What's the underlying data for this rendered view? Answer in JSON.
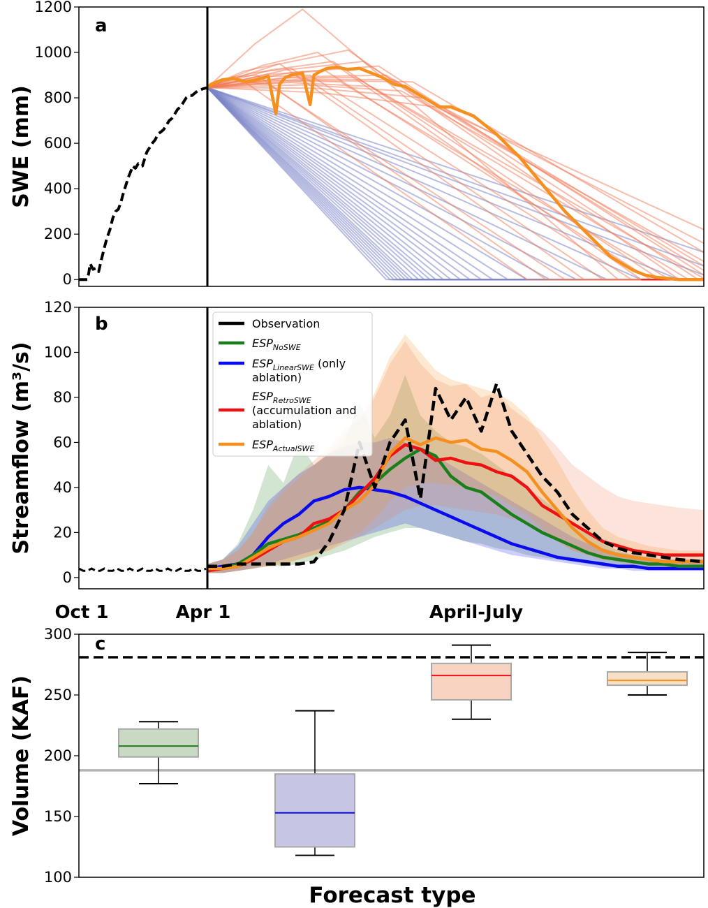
{
  "figure": {
    "bottom_labels": {
      "oct1": "Oct 1",
      "apr1": "Apr 1",
      "apr_jul": "April-July"
    },
    "colors": {
      "observation": "#000000",
      "nosweet": "#1a7f1a",
      "linear": "#0a0aee",
      "retro": "#ee1111",
      "actual": "#f5901e",
      "ens_orange": "#f27a55",
      "ens_blue": "#7b85c8",
      "ref_gray": "#b4b4b4"
    }
  },
  "chart_data": [
    {
      "panel": "a",
      "type": "line",
      "ylabel": "SWE (mm)",
      "ylim": [
        -30,
        1200
      ],
      "yticks": [
        0,
        200,
        400,
        600,
        800,
        1000,
        1200
      ],
      "x_domain": [
        "Oct 1",
        "Jul 31"
      ],
      "observation_before_apr1": {
        "x": [
          0,
          6,
          9,
          10,
          12,
          14,
          16,
          20,
          24,
          28,
          32,
          36,
          40,
          44,
          48,
          52,
          56,
          60,
          62,
          66,
          70,
          74,
          76,
          80,
          84,
          88,
          90,
          92,
          96,
          100,
          104,
          108,
          112,
          116,
          120,
          124,
          128,
          132,
          136,
          140,
          144,
          148,
          152,
          156,
          160,
          164,
          168,
          172,
          176,
          182
        ],
        "y": [
          0,
          0,
          0,
          0,
          0,
          30,
          70,
          45,
          50,
          35,
          90,
          140,
          185,
          220,
          270,
          300,
          310,
          345,
          370,
          410,
          450,
          480,
          500,
          490,
          510,
          500,
          500,
          520,
          560,
          580,
          600,
          615,
          640,
          650,
          660,
          680,
          700,
          710,
          730,
          750,
          760,
          780,
          800,
          810,
          810,
          820,
          830,
          835,
          840,
          845
        ]
      },
      "actual_swe_forecast": {
        "x": [
          182,
          184,
          190,
          196,
          202,
          208,
          214,
          218,
          220,
          223,
          226,
          232,
          236,
          238,
          241,
          245,
          250,
          256,
          262,
          268,
          274,
          280,
          286,
          292,
          298,
          304,
          310,
          316,
          322,
          328,
          334,
          340,
          346,
          352,
          358,
          364,
          370,
          376,
          382,
          388,
          394,
          400,
          406,
          412,
          418,
          424,
          430,
          436,
          443
        ],
        "y": [
          845,
          860,
          880,
          885,
          870,
          880,
          895,
          730,
          860,
          890,
          900,
          910,
          770,
          900,
          915,
          930,
          935,
          925,
          930,
          910,
          890,
          860,
          850,
          820,
          790,
          760,
          760,
          740,
          720,
          680,
          640,
          590,
          540,
          480,
          420,
          360,
          300,
          250,
          200,
          150,
          100,
          70,
          40,
          20,
          10,
          5,
          0,
          0,
          0
        ]
      },
      "ensemble_accumulation_ablation": {
        "start_x": 182,
        "start_y": 845,
        "peak_x": [
          200,
          208,
          214,
          220,
          226,
          232,
          236,
          240,
          244,
          248,
          252,
          256,
          260,
          264,
          268,
          272,
          276,
          280,
          284,
          290,
          296,
          302
        ],
        "peak_y": [
          880,
          900,
          860,
          950,
          930,
          1190,
          900,
          1000,
          920,
          960,
          870,
          1010,
          890,
          960,
          850,
          940,
          900,
          880,
          830,
          870,
          800,
          760
        ],
        "melt_out_x": [
          350,
          360,
          370,
          380,
          390,
          398,
          405,
          410,
          415,
          420,
          425,
          430,
          435,
          440,
          443,
          443,
          443,
          443,
          443,
          443,
          443,
          443
        ],
        "end_y": [
          0,
          0,
          0,
          0,
          0,
          0,
          0,
          0,
          0,
          0,
          0,
          0,
          0,
          0,
          5,
          20,
          40,
          60,
          80,
          120,
          160,
          220
        ]
      },
      "ensemble_linear_ablation": {
        "start_x": 182,
        "start_y": 845,
        "melt_out_x": [
          276,
          278,
          280,
          282,
          284,
          286,
          288,
          290,
          293,
          296,
          299,
          302,
          306,
          310,
          315,
          320,
          326,
          332,
          340,
          350,
          362,
          376,
          392,
          410,
          430,
          443,
          443,
          443
        ],
        "end_y": [
          0,
          0,
          0,
          0,
          0,
          0,
          0,
          0,
          0,
          0,
          0,
          0,
          0,
          0,
          0,
          0,
          0,
          0,
          0,
          0,
          0,
          0,
          0,
          0,
          0,
          20,
          60,
          120
        ]
      }
    },
    {
      "panel": "b",
      "type": "line",
      "ylabel": "Streamflow (m³/s)",
      "ylim": [
        -5,
        120
      ],
      "yticks": [
        0,
        20,
        40,
        60,
        80,
        100,
        120
      ],
      "legend": {
        "position": "top-left",
        "entries": [
          {
            "main": "Observation",
            "sub": "",
            "tail": "",
            "line2": "",
            "line3": "",
            "series": "observation"
          },
          {
            "main": "ESP",
            "sub": "NoSWE",
            "tail": "",
            "line2": "",
            "line3": "",
            "series": "nosweet"
          },
          {
            "main": "ESP",
            "sub": "LinearSWE",
            "tail": " (only",
            "line2": "ablation)",
            "line3": "",
            "series": "linear"
          },
          {
            "main": "ESP",
            "sub": "RetroSWE",
            "tail": "",
            "line2": "(accumulation and",
            "line3": "ablation)",
            "series": "retro"
          },
          {
            "main": "ESP",
            "sub": "ActualSWE",
            "tail": "",
            "line2": "",
            "line3": "",
            "series": "actual"
          }
        ]
      },
      "x": [
        182,
        190,
        198,
        206,
        214,
        222,
        230,
        238,
        246,
        254,
        262,
        270,
        278,
        286,
        294,
        302,
        310,
        318,
        326,
        334,
        342,
        350,
        358,
        366,
        374,
        382,
        390,
        398,
        406,
        414,
        422,
        430,
        443
      ],
      "series": [
        {
          "key": "observation",
          "dashed": true,
          "values": [
            5,
            5,
            6,
            6,
            6,
            6,
            6,
            7,
            16,
            30,
            60,
            40,
            60,
            70,
            35,
            84,
            70,
            80,
            65,
            86,
            65,
            55,
            45,
            38,
            28,
            22,
            16,
            13,
            11,
            10,
            9,
            8,
            7
          ]
        },
        {
          "key": "nosweet",
          "values": [
            4,
            4,
            6,
            10,
            15,
            17,
            19,
            22,
            25,
            30,
            38,
            42,
            48,
            53,
            57,
            54,
            45,
            40,
            38,
            33,
            28,
            24,
            20,
            17,
            14,
            11,
            9,
            8,
            7,
            6,
            6,
            5,
            5
          ]
        },
        {
          "key": "linear",
          "values": [
            4,
            5,
            6,
            10,
            18,
            24,
            28,
            34,
            36,
            39,
            40,
            39,
            38,
            36,
            33,
            30,
            27,
            24,
            21,
            18,
            15,
            13,
            11,
            9,
            8,
            7,
            6,
            5,
            5,
            4,
            4,
            4,
            4
          ]
        },
        {
          "key": "retro",
          "values": [
            3,
            4,
            5,
            8,
            12,
            16,
            18,
            24,
            26,
            30,
            37,
            44,
            54,
            59,
            57,
            52,
            53,
            51,
            50,
            47,
            45,
            40,
            32,
            28,
            24,
            20,
            16,
            14,
            12,
            11,
            10,
            10,
            10
          ]
        },
        {
          "key": "actual",
          "values": [
            4,
            4,
            5,
            9,
            13,
            16,
            18,
            21,
            24,
            30,
            34,
            41,
            55,
            62,
            59,
            62,
            60,
            61,
            57,
            56,
            52,
            47,
            38,
            30,
            22,
            16,
            12,
            10,
            9,
            8,
            7,
            7,
            7
          ]
        }
      ],
      "bands": [
        {
          "key": "nosweet",
          "lower": [
            2,
            2,
            3,
            4,
            5,
            5,
            6,
            8,
            10,
            12,
            15,
            18,
            20,
            22,
            22,
            20,
            18,
            16,
            15,
            13,
            12,
            10,
            9,
            8,
            7,
            6,
            5,
            4,
            4,
            4,
            4,
            4,
            4
          ],
          "upper": [
            6,
            8,
            15,
            30,
            50,
            42,
            60,
            50,
            55,
            60,
            78,
            62,
            72,
            90,
            72,
            65,
            60,
            58,
            55,
            50,
            45,
            40,
            35,
            30,
            25,
            20,
            15,
            12,
            10,
            9,
            8,
            8,
            8
          ]
        },
        {
          "key": "linear",
          "lower": [
            2,
            2,
            3,
            4,
            6,
            8,
            10,
            12,
            14,
            16,
            18,
            20,
            22,
            24,
            22,
            20,
            18,
            16,
            14,
            12,
            10,
            9,
            8,
            7,
            6,
            5,
            4,
            4,
            3,
            3,
            3,
            3,
            3
          ],
          "upper": [
            6,
            8,
            14,
            24,
            34,
            40,
            46,
            50,
            55,
            58,
            60,
            60,
            62,
            60,
            58,
            54,
            50,
            46,
            42,
            38,
            34,
            30,
            26,
            22,
            18,
            15,
            13,
            11,
            10,
            9,
            8,
            8,
            8
          ]
        },
        {
          "key": "retro",
          "lower": [
            2,
            2,
            3,
            4,
            5,
            6,
            8,
            10,
            12,
            15,
            18,
            22,
            26,
            30,
            32,
            32,
            31,
            30,
            29,
            28,
            26,
            24,
            20,
            16,
            12,
            10,
            8,
            7,
            6,
            6,
            5,
            5,
            5
          ],
          "upper": [
            6,
            8,
            12,
            20,
            32,
            40,
            46,
            52,
            58,
            66,
            70,
            80,
            95,
            105,
            95,
            88,
            85,
            86,
            80,
            82,
            75,
            70,
            65,
            58,
            50,
            45,
            40,
            36,
            34,
            33,
            32,
            31,
            30
          ]
        },
        {
          "key": "actual",
          "lower": [
            2,
            2,
            3,
            4,
            5,
            6,
            8,
            10,
            12,
            16,
            20,
            26,
            34,
            40,
            42,
            42,
            41,
            40,
            38,
            36,
            32,
            28,
            22,
            16,
            12,
            10,
            8,
            7,
            6,
            6,
            5,
            5,
            5
          ],
          "upper": [
            6,
            8,
            12,
            20,
            30,
            38,
            44,
            50,
            56,
            64,
            70,
            82,
            98,
            108,
            100,
            92,
            88,
            86,
            84,
            82,
            78,
            72,
            62,
            52,
            40,
            30,
            22,
            18,
            16,
            14,
            13,
            12,
            12
          ]
        }
      ]
    },
    {
      "panel": "c",
      "type": "box",
      "xlabel": "Forecast type",
      "ylabel": "Volume (KAF)",
      "ylim": [
        100,
        300
      ],
      "yticks": [
        100,
        150,
        200,
        250,
        300
      ],
      "observation_line": 281,
      "reference_line": 188,
      "boxes": [
        {
          "key": "nosweet",
          "whisker_low": 177,
          "q1": 199,
          "median": 208,
          "q3": 222,
          "whisker_high": 228
        },
        {
          "key": "linear",
          "whisker_low": 118,
          "q1": 125,
          "median": 153,
          "q3": 185,
          "whisker_high": 237
        },
        {
          "key": "retro",
          "whisker_low": 230,
          "q1": 246,
          "median": 266,
          "q3": 276,
          "whisker_high": 291
        },
        {
          "key": "actual",
          "whisker_low": 250,
          "q1": 258,
          "median": 262,
          "q3": 269,
          "whisker_high": 285
        }
      ]
    }
  ]
}
